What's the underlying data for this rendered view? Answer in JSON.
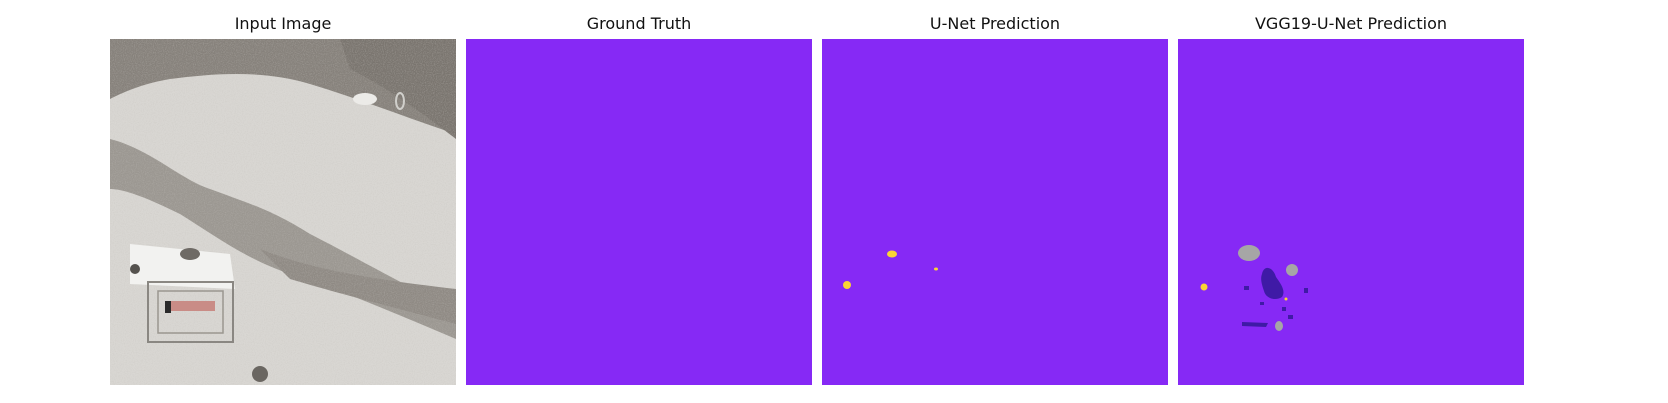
{
  "panels": [
    {
      "title": "Input Image"
    },
    {
      "title": "Ground Truth"
    },
    {
      "title": "U-Net Prediction"
    },
    {
      "title": "VGG19-U-Net Prediction"
    }
  ],
  "colors": {
    "background_class": "#8629f5",
    "yellow_class": "#fad534",
    "gray_class": "#a6a6a6",
    "dark_class": "#3f1aa6"
  }
}
